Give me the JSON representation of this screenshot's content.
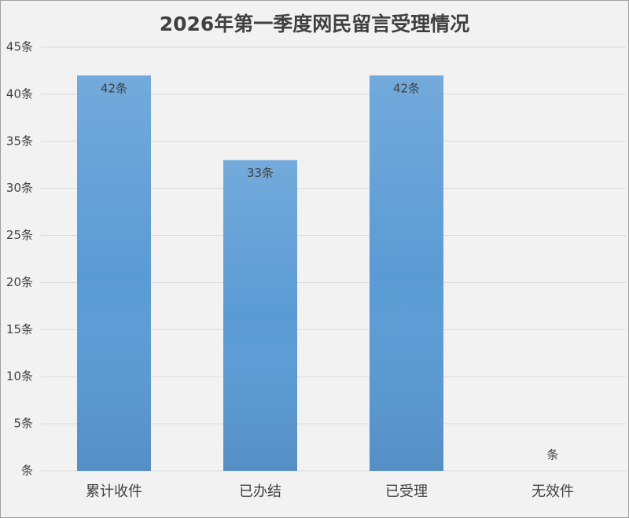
{
  "chart_data": {
    "type": "bar",
    "title": "2026年第一季度网民留言受理情况",
    "categories": [
      "累计收件",
      "已办结",
      "已受理",
      "无效件"
    ],
    "values": [
      42,
      33,
      42,
      0
    ],
    "value_labels": [
      "42条",
      "33条",
      "42条",
      "条"
    ],
    "color": "#5b9bd5",
    "ylim": [
      0,
      45
    ],
    "yticks": [
      {
        "value": 0,
        "label": "条"
      },
      {
        "value": 5,
        "label": "5条"
      },
      {
        "value": 10,
        "label": "10条"
      },
      {
        "value": 15,
        "label": "15条"
      },
      {
        "value": 20,
        "label": "20条"
      },
      {
        "value": 25,
        "label": "25条"
      },
      {
        "value": 30,
        "label": "30条"
      },
      {
        "value": 35,
        "label": "35条"
      },
      {
        "value": 40,
        "label": "40条"
      },
      {
        "value": 45,
        "label": "45条"
      }
    ],
    "grid": true
  }
}
